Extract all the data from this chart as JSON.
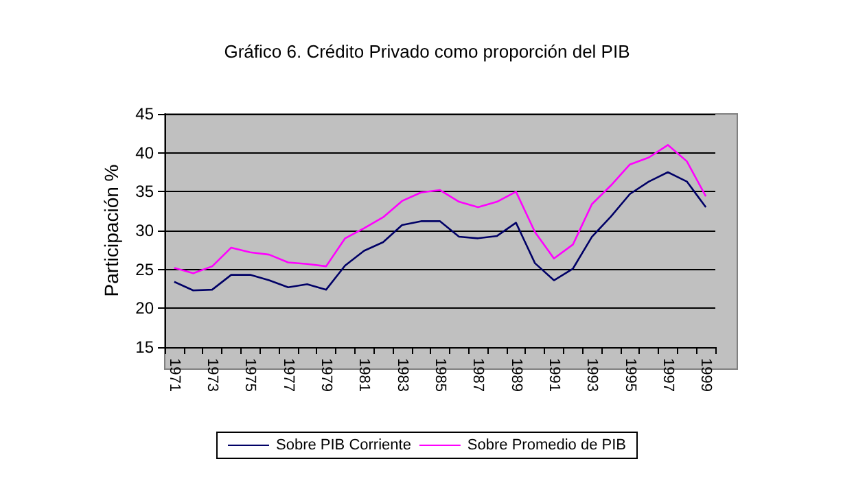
{
  "chart_data": {
    "type": "line",
    "title": "Gráfico 6. Crédito Privado como proporción del PIB",
    "ylabel": "Participación %",
    "categories": [
      "1971",
      null,
      "1973",
      null,
      "1975",
      null,
      "1977",
      null,
      "1979",
      null,
      "1981",
      null,
      "1983",
      null,
      "1985",
      null,
      "1987",
      null,
      "1989",
      null,
      "1991",
      null,
      "1993",
      null,
      "1995",
      null,
      "1997",
      null,
      "1999"
    ],
    "series": [
      {
        "name": "Sobre PIB Corriente",
        "color": "#000066",
        "values": [
          23.4,
          22.3,
          22.4,
          24.3,
          24.3,
          23.6,
          22.7,
          23.1,
          22.4,
          25.5,
          27.4,
          28.5,
          30.7,
          31.2,
          31.2,
          29.2,
          29.0,
          29.3,
          31.0,
          25.8,
          23.6,
          25.1,
          29.2,
          31.8,
          34.7,
          36.3,
          37.5,
          36.3,
          33.0
        ]
      },
      {
        "name": "Sobre Promedio de PIB",
        "color": "#ff00ff",
        "values": [
          25.2,
          24.5,
          25.4,
          27.8,
          27.2,
          26.9,
          25.9,
          25.7,
          25.4,
          29.0,
          30.3,
          31.7,
          33.8,
          34.9,
          35.2,
          33.7,
          33.0,
          33.7,
          35.0,
          29.8,
          26.4,
          28.2,
          33.4,
          35.8,
          38.5,
          39.4,
          41.0,
          38.9,
          34.4
        ]
      }
    ],
    "ylim": [
      15,
      45
    ],
    "yticks": [
      15,
      20,
      25,
      30,
      35,
      40,
      45
    ],
    "grid": "y",
    "legend": "bottom",
    "marker": "none",
    "line_style": "solid"
  }
}
